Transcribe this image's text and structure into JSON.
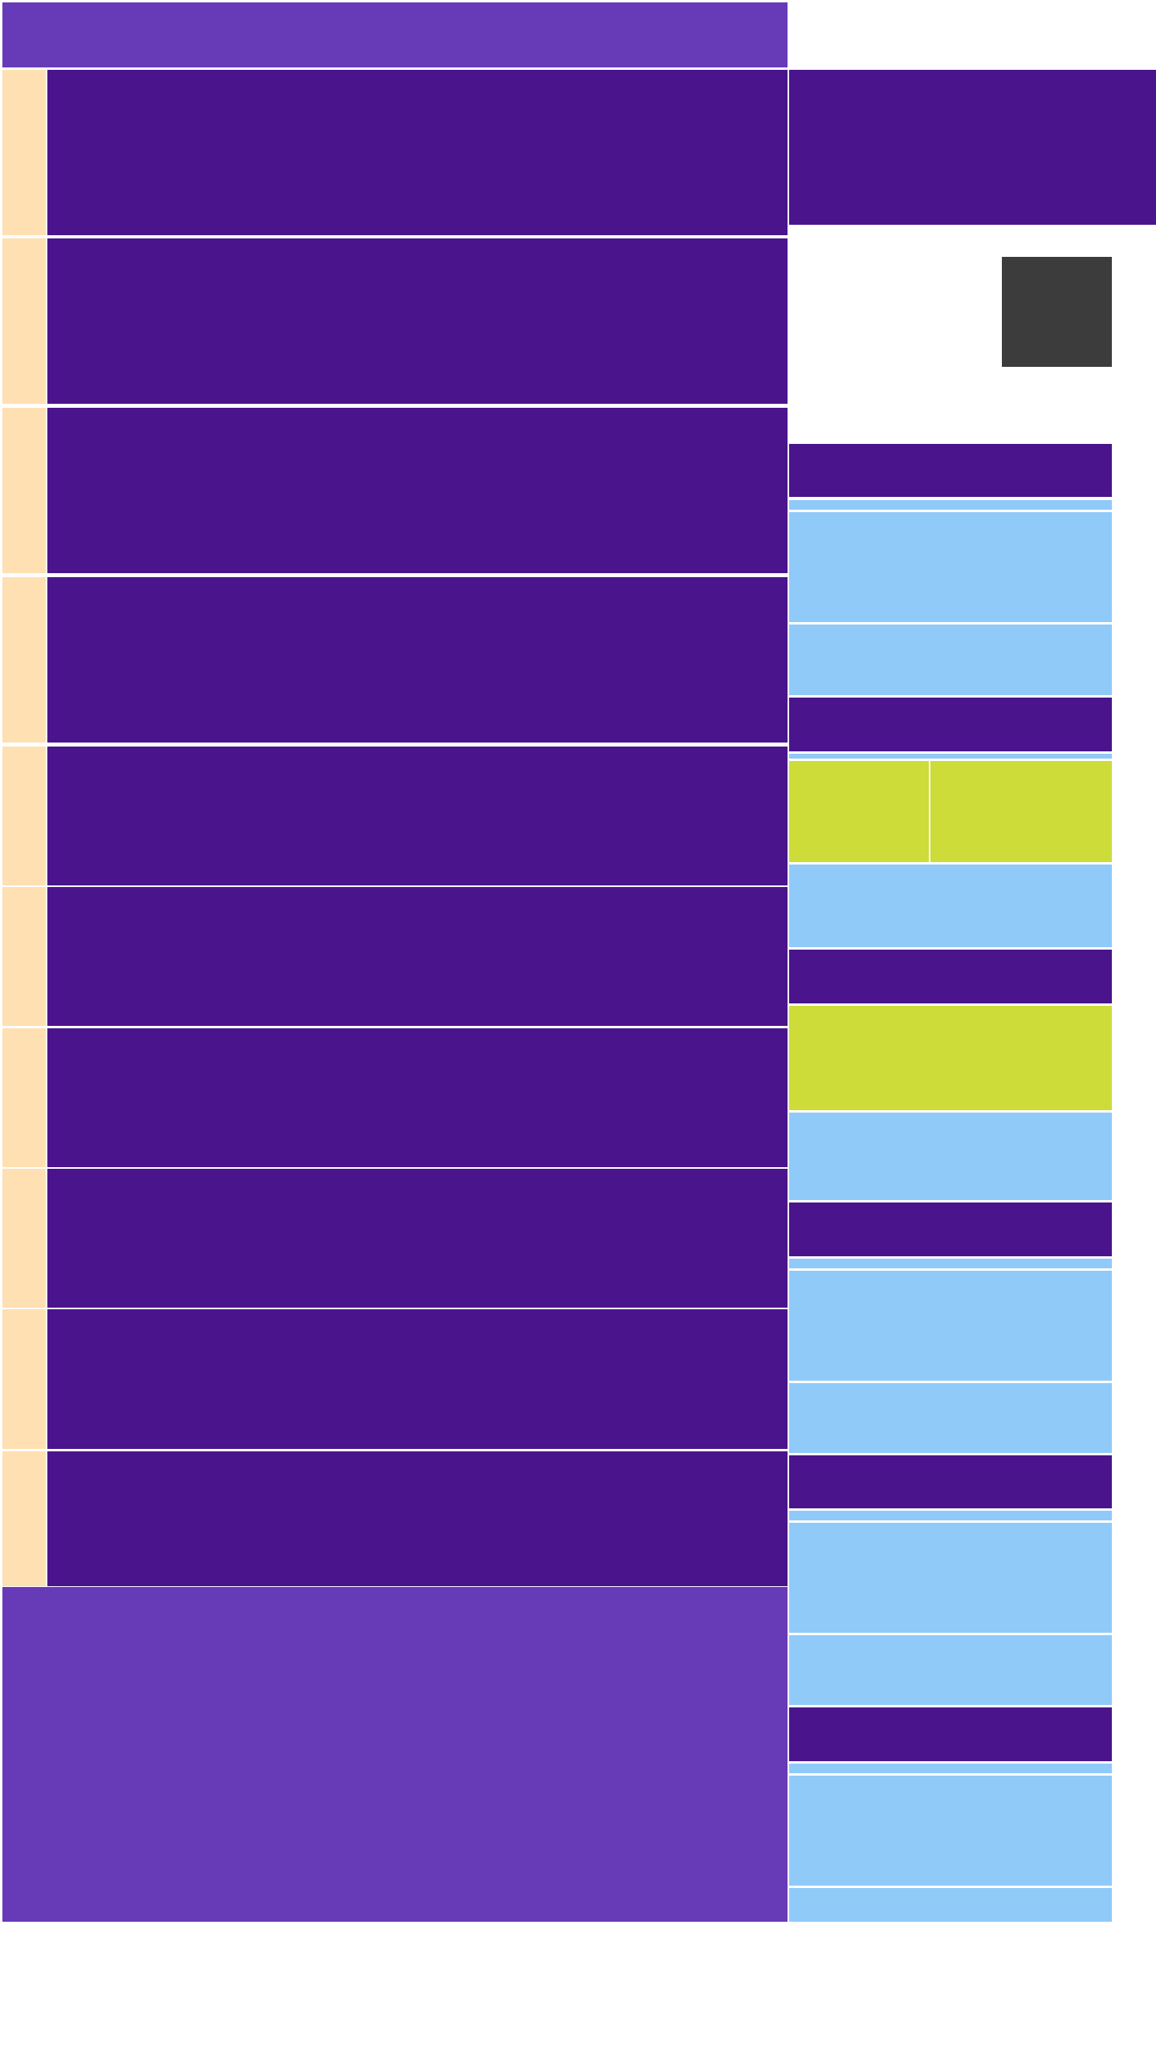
{
  "colors": {
    "purple_light": "#673ab7",
    "purple_dark": "#4a148c",
    "peach": "#ffe0b2",
    "blue": "#90caf9",
    "lime": "#cddc39",
    "gray": "#3c3c3c",
    "background": "#ffffff"
  },
  "content": {
    "rows": [
      {
        "marker": "",
        "text": ""
      },
      {
        "marker": "",
        "text": ""
      },
      {
        "marker": "",
        "text": ""
      },
      {
        "marker": "",
        "text": ""
      },
      {
        "marker": "",
        "text": ""
      },
      {
        "marker": "",
        "text": ""
      },
      {
        "marker": "",
        "text": ""
      },
      {
        "marker": "",
        "text": ""
      },
      {
        "marker": "",
        "text": ""
      },
      {
        "marker": "",
        "text": ""
      }
    ]
  }
}
